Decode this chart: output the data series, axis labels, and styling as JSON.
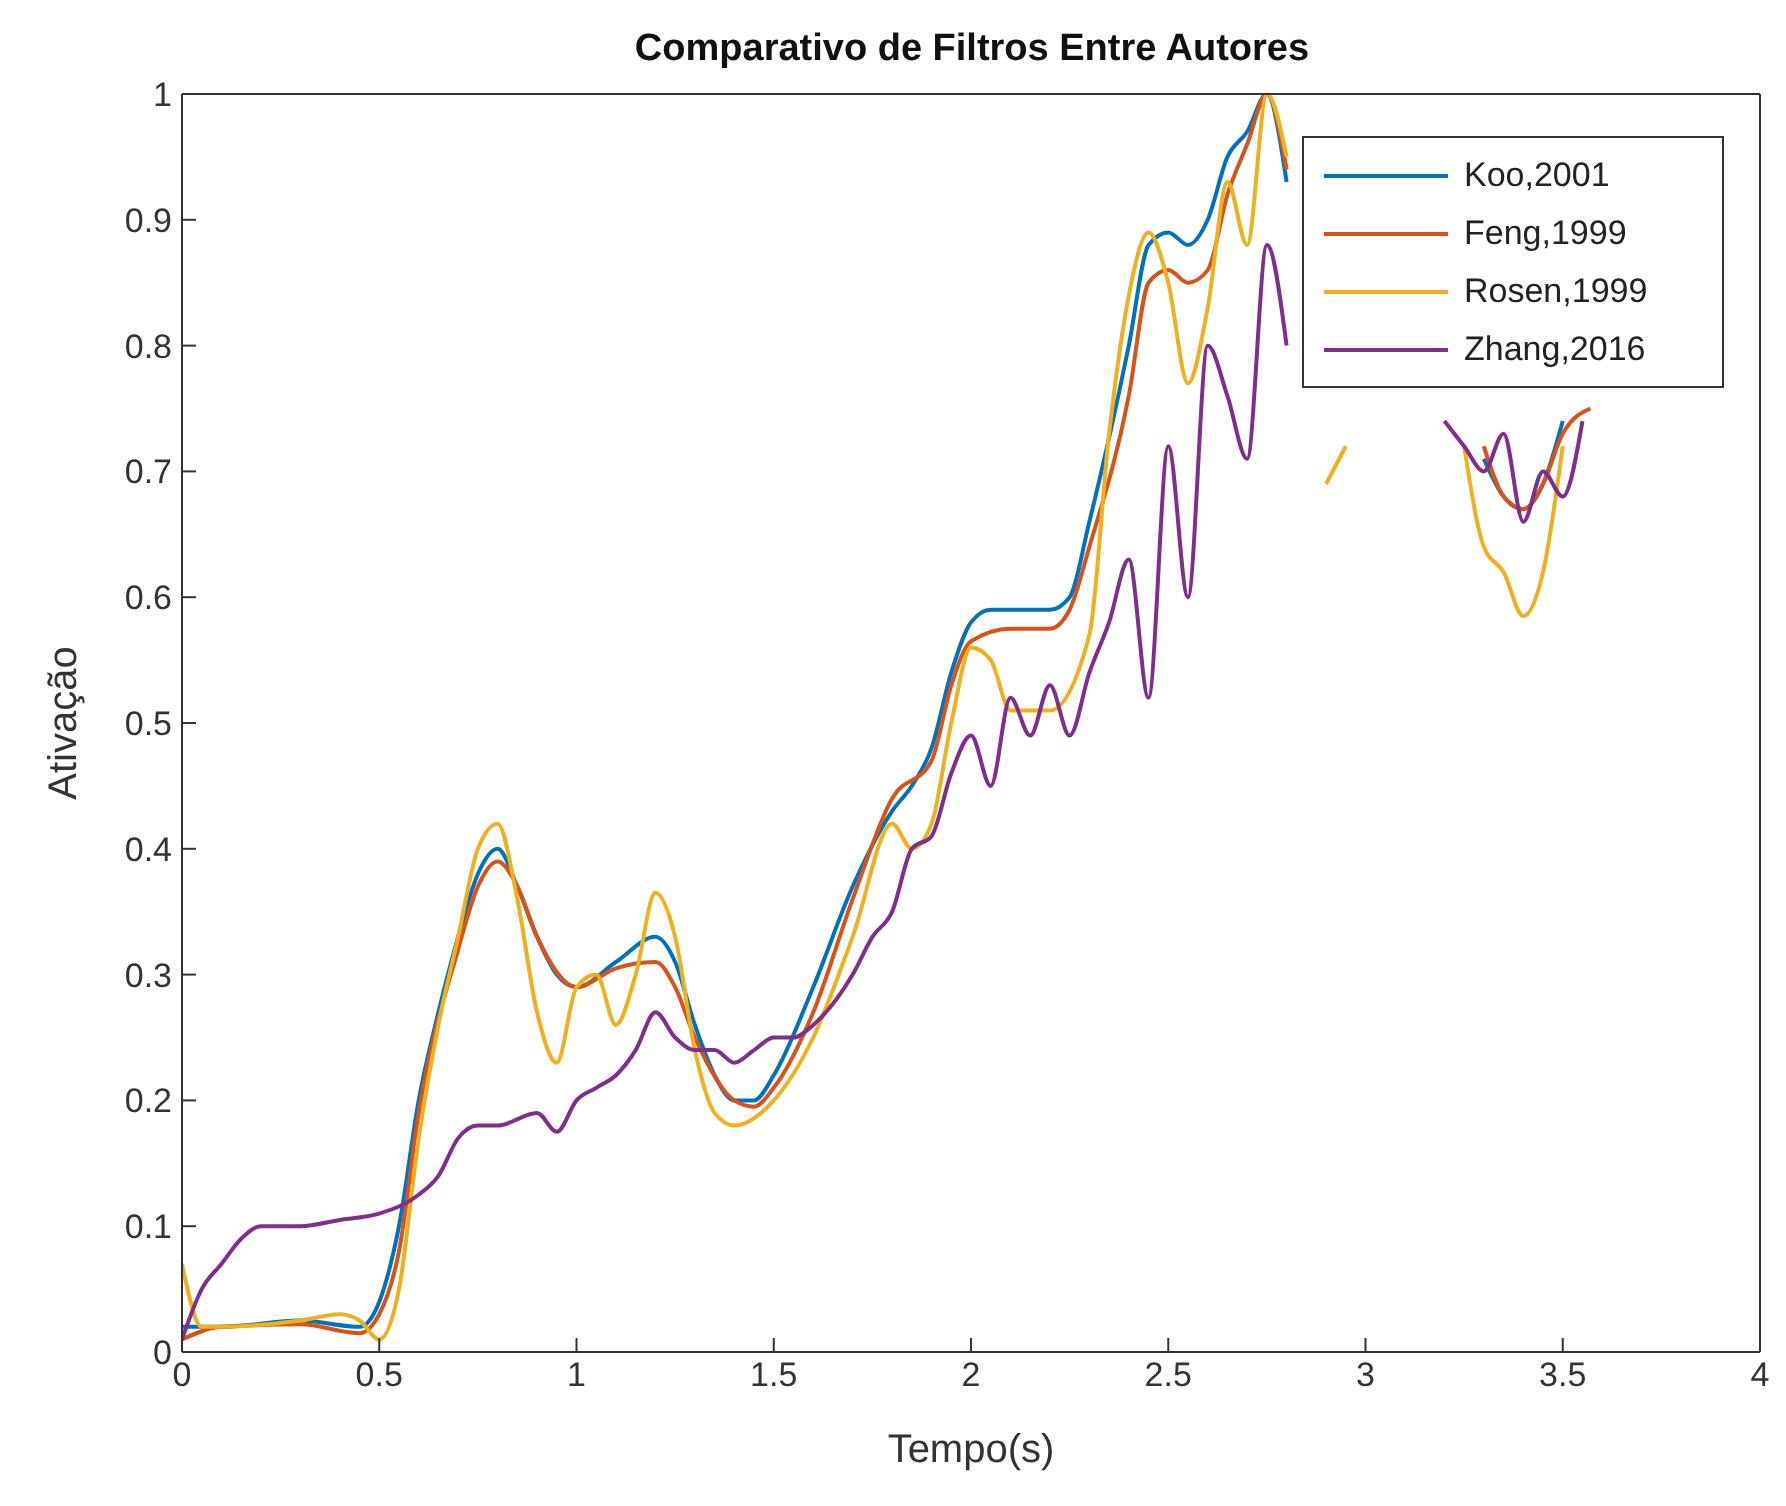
{
  "chart_data": {
    "type": "line",
    "title": "Comparativo de Filtros Entre Autores",
    "xlabel": "Tempo(s)",
    "ylabel": "Ativação",
    "xlim": [
      0,
      4
    ],
    "ylim": [
      0,
      1
    ],
    "xticks": [
      0,
      0.5,
      1,
      1.5,
      2,
      2.5,
      3,
      3.5,
      4
    ],
    "yticks": [
      0,
      0.1,
      0.2,
      0.3,
      0.4,
      0.5,
      0.6,
      0.7,
      0.8,
      0.9,
      1
    ],
    "grid": false,
    "legend": "top right",
    "marker": "none",
    "line_style": "solid",
    "series": [
      {
        "name": "Koo,2001",
        "color": "#0072bd",
        "x": [
          0,
          0.1,
          0.3,
          0.45,
          0.5,
          0.55,
          0.6,
          0.65,
          0.7,
          0.75,
          0.8,
          0.85,
          0.9,
          0.95,
          1.0,
          1.1,
          1.2,
          1.25,
          1.3,
          1.35,
          1.4,
          1.45,
          1.5,
          1.6,
          1.7,
          1.8,
          1.85,
          1.9,
          1.95,
          2.0,
          2.05,
          2.2,
          2.25,
          2.3,
          2.4,
          2.45,
          2.5,
          2.55,
          2.6,
          2.65,
          2.7,
          2.75,
          2.8,
          2.85,
          3.2,
          3.25,
          3.3,
          3.35,
          3.4,
          3.45,
          3.5
        ],
        "values": [
          0.02,
          0.02,
          0.025,
          0.02,
          0.04,
          0.1,
          0.2,
          0.27,
          0.33,
          0.38,
          0.4,
          0.37,
          0.33,
          0.3,
          0.29,
          0.31,
          0.33,
          0.31,
          0.26,
          0.22,
          0.2,
          0.2,
          0.22,
          0.29,
          0.37,
          0.43,
          0.45,
          0.48,
          0.54,
          0.58,
          0.59,
          0.59,
          0.6,
          0.66,
          0.8,
          0.88,
          0.89,
          0.88,
          0.9,
          0.95,
          0.97,
          1.0,
          0.93,
          null,
          null,
          null,
          0.71,
          0.68,
          0.67,
          0.69,
          0.74
        ]
      },
      {
        "name": "Feng,1999",
        "color": "#d95319",
        "x": [
          0,
          0.1,
          0.3,
          0.45,
          0.5,
          0.55,
          0.6,
          0.7,
          0.75,
          0.8,
          0.85,
          0.9,
          1.0,
          1.1,
          1.2,
          1.25,
          1.3,
          1.4,
          1.45,
          1.5,
          1.6,
          1.7,
          1.8,
          1.9,
          1.95,
          2.0,
          2.1,
          2.2,
          2.25,
          2.3,
          2.4,
          2.45,
          2.5,
          2.55,
          2.6,
          2.65,
          2.7,
          2.75,
          2.8,
          2.85,
          3.2,
          3.25,
          3.3,
          3.35,
          3.4,
          3.45,
          3.5,
          3.57
        ],
        "values": [
          0.01,
          0.02,
          0.022,
          0.015,
          0.03,
          0.08,
          0.19,
          0.32,
          0.37,
          0.39,
          0.37,
          0.33,
          0.29,
          0.305,
          0.31,
          0.29,
          0.25,
          0.2,
          0.195,
          0.21,
          0.27,
          0.36,
          0.44,
          0.47,
          0.53,
          0.565,
          0.575,
          0.575,
          0.59,
          0.64,
          0.76,
          0.85,
          0.86,
          0.85,
          0.86,
          0.92,
          0.96,
          1.0,
          0.94,
          null,
          null,
          null,
          0.72,
          0.68,
          0.67,
          0.69,
          0.73,
          0.75
        ]
      },
      {
        "name": "Rosen,1999",
        "color": "#edb120",
        "x": [
          0,
          0.05,
          0.1,
          0.3,
          0.4,
          0.45,
          0.5,
          0.55,
          0.6,
          0.65,
          0.7,
          0.75,
          0.8,
          0.85,
          0.9,
          0.95,
          1.0,
          1.05,
          1.1,
          1.15,
          1.2,
          1.25,
          1.3,
          1.35,
          1.4,
          1.5,
          1.6,
          1.7,
          1.8,
          1.85,
          1.9,
          1.95,
          2.0,
          2.05,
          2.1,
          2.2,
          2.3,
          2.35,
          2.4,
          2.45,
          2.5,
          2.55,
          2.6,
          2.65,
          2.7,
          2.75,
          2.8,
          2.85,
          2.9,
          2.95,
          3.0,
          3.2,
          3.25,
          3.3,
          3.35,
          3.4,
          3.45,
          3.5
        ],
        "values": [
          0.07,
          0.02,
          0.02,
          0.025,
          0.03,
          0.025,
          0.01,
          0.05,
          0.17,
          0.26,
          0.33,
          0.4,
          0.42,
          0.36,
          0.27,
          0.23,
          0.29,
          0.3,
          0.26,
          0.3,
          0.365,
          0.33,
          0.24,
          0.19,
          0.18,
          0.2,
          0.25,
          0.33,
          0.42,
          0.4,
          0.42,
          0.5,
          0.56,
          0.55,
          0.51,
          0.51,
          0.57,
          0.73,
          0.84,
          0.89,
          0.85,
          0.77,
          0.83,
          0.93,
          0.88,
          1.0,
          0.95,
          null,
          0.69,
          0.72,
          null,
          null,
          0.72,
          0.64,
          0.62,
          0.585,
          0.62,
          0.72
        ]
      },
      {
        "name": "Zhang,2016",
        "color": "#7e2f8e",
        "x": [
          0,
          0.05,
          0.1,
          0.15,
          0.2,
          0.3,
          0.4,
          0.5,
          0.6,
          0.65,
          0.7,
          0.75,
          0.8,
          0.9,
          0.95,
          1.0,
          1.05,
          1.1,
          1.15,
          1.2,
          1.25,
          1.3,
          1.35,
          1.4,
          1.45,
          1.5,
          1.55,
          1.6,
          1.7,
          1.75,
          1.8,
          1.85,
          1.9,
          1.95,
          2.0,
          2.05,
          2.1,
          2.15,
          2.2,
          2.25,
          2.3,
          2.35,
          2.4,
          2.45,
          2.5,
          2.55,
          2.6,
          2.65,
          2.7,
          2.75,
          2.8,
          2.85,
          3.15,
          3.2,
          3.25,
          3.3,
          3.35,
          3.4,
          3.45,
          3.5,
          3.55
        ],
        "values": [
          0.01,
          0.05,
          0.07,
          0.09,
          0.1,
          0.1,
          0.105,
          0.11,
          0.125,
          0.14,
          0.17,
          0.18,
          0.18,
          0.19,
          0.175,
          0.2,
          0.21,
          0.22,
          0.24,
          0.27,
          0.25,
          0.24,
          0.24,
          0.23,
          0.24,
          0.25,
          0.25,
          0.26,
          0.3,
          0.33,
          0.35,
          0.4,
          0.41,
          0.46,
          0.49,
          0.45,
          0.52,
          0.49,
          0.53,
          0.49,
          0.54,
          0.58,
          0.63,
          0.52,
          0.72,
          0.6,
          0.8,
          0.76,
          0.71,
          0.88,
          0.8,
          null,
          null,
          0.74,
          0.72,
          0.7,
          0.73,
          0.66,
          0.7,
          0.68,
          0.74
        ]
      }
    ]
  }
}
